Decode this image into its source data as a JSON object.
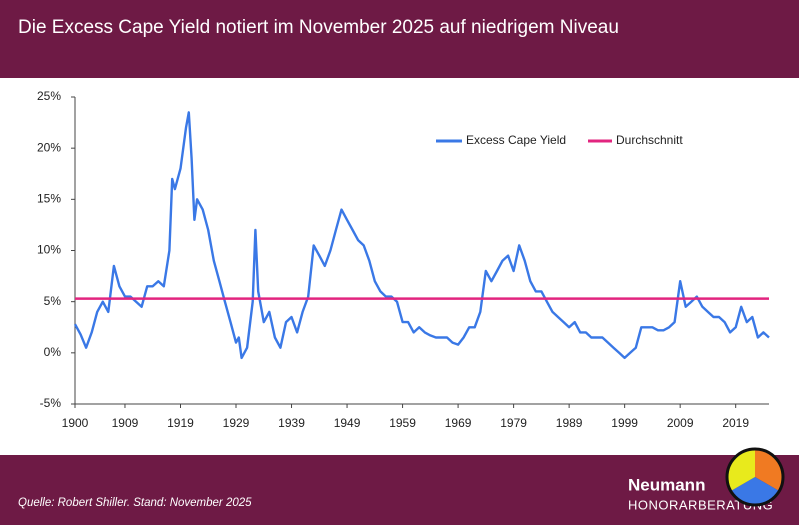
{
  "chart_data": {
    "type": "line",
    "title": "Die Excess Cape Yield notiert im November 2025 auf niedrigem Niveau",
    "source": "Quelle: Robert Shiller. Stand: November 2025",
    "x": [
      1900,
      1901,
      1902,
      1903,
      1904,
      1905,
      1906,
      1907,
      1908,
      1909,
      1910,
      1911,
      1912,
      1913,
      1914,
      1915,
      1916,
      1917,
      1917.5,
      1918,
      1919,
      1920,
      1920.5,
      1921,
      1921.5,
      1922,
      1923,
      1924,
      1925,
      1926,
      1927,
      1928,
      1929,
      1929.5,
      1930,
      1931,
      1932,
      1932.5,
      1933,
      1934,
      1935,
      1936,
      1937,
      1938,
      1939,
      1940,
      1941,
      1942,
      1943,
      1944,
      1945,
      1946,
      1947,
      1948,
      1949,
      1950,
      1951,
      1952,
      1953,
      1954,
      1955,
      1956,
      1957,
      1958,
      1959,
      1960,
      1961,
      1962,
      1963,
      1964,
      1965,
      1966,
      1967,
      1968,
      1969,
      1970,
      1971,
      1972,
      1973,
      1974,
      1975,
      1976,
      1977,
      1978,
      1979,
      1980,
      1981,
      1982,
      1983,
      1984,
      1985,
      1986,
      1987,
      1988,
      1989,
      1990,
      1991,
      1992,
      1993,
      1994,
      1995,
      1996,
      1997,
      1998,
      1999,
      2000,
      2001,
      2002,
      2003,
      2004,
      2005,
      2006,
      2007,
      2008,
      2009,
      2010,
      2011,
      2012,
      2013,
      2014,
      2015,
      2016,
      2017,
      2018,
      2019,
      2020,
      2021,
      2022,
      2023,
      2024,
      2025
    ],
    "series": [
      {
        "name": "Excess Cape Yield",
        "color": "#3a78e6",
        "values": [
          2.8,
          1.8,
          0.5,
          2.0,
          4.0,
          5.0,
          4.0,
          8.5,
          6.5,
          5.5,
          5.5,
          5.0,
          4.5,
          6.5,
          6.5,
          7.0,
          6.5,
          10,
          17,
          16,
          18,
          22,
          23.5,
          19,
          13,
          15,
          14,
          12,
          9,
          7,
          5,
          3,
          1,
          1.5,
          -0.5,
          0.5,
          5,
          12,
          6,
          3,
          4,
          1.5,
          0.5,
          3,
          3.5,
          2,
          4,
          5.5,
          10.5,
          9.5,
          8.5,
          10,
          12,
          14,
          13,
          12,
          11,
          10.5,
          9,
          7,
          6,
          5.5,
          5.5,
          5,
          3,
          3,
          2,
          2.5,
          2,
          1.7,
          1.5,
          1.5,
          1.5,
          1,
          0.8,
          1.5,
          2.5,
          2.5,
          4,
          8,
          7,
          8,
          9,
          9.5,
          8,
          10.5,
          9,
          7,
          6,
          6,
          5,
          4,
          3.5,
          3,
          2.5,
          3,
          2,
          2,
          1.5,
          1.5,
          1.5,
          1,
          0.5,
          0,
          -0.5,
          0,
          0.5,
          2.5,
          2.5,
          2.5,
          2.2,
          2.2,
          2.5,
          3,
          7,
          4.5,
          5,
          5.5,
          4.5,
          4,
          3.5,
          3.5,
          3,
          2,
          2.5,
          4.5,
          3,
          3.5,
          1.5,
          2,
          1.5
        ]
      }
    ],
    "reference_line": {
      "name": "Durchschnitt",
      "value": 5.3,
      "color": "#e2257f"
    },
    "xlim": [
      1900,
      2025
    ],
    "xticks": [
      1900,
      1909,
      1919,
      1929,
      1939,
      1949,
      1959,
      1969,
      1979,
      1989,
      1999,
      2009,
      2019
    ],
    "ylim": [
      -5,
      25
    ],
    "yticks": [
      {
        "value": -5,
        "label": "-5%"
      },
      {
        "value": 0,
        "label": "0%"
      },
      {
        "value": 5,
        "label": "5%"
      },
      {
        "value": 10,
        "label": "10%"
      },
      {
        "value": 15,
        "label": "15%"
      },
      {
        "value": 20,
        "label": "20%"
      },
      {
        "value": 25,
        "label": "25%"
      }
    ],
    "legend": "upper right"
  },
  "logo": {
    "name": "Neumann",
    "tagline": "HONORARBERATUNG"
  }
}
